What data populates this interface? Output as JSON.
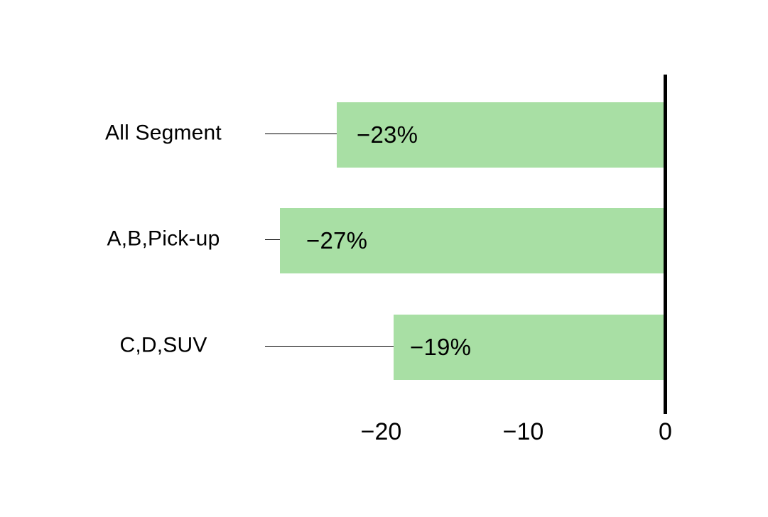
{
  "chart_data": {
    "type": "bar",
    "orientation": "horizontal",
    "categories": [
      "All Segment",
      "A,B,Pick-up",
      "C,D,SUV"
    ],
    "values": [
      -23,
      -27,
      -19
    ],
    "value_labels": [
      "−23%",
      "−27%",
      "−19%"
    ],
    "xticks": [
      -20,
      -10,
      0
    ],
    "xtick_labels": [
      "−20",
      "−10",
      "0"
    ],
    "xlim": [
      -28,
      0
    ],
    "unit": "percent",
    "bar_color": "#a8dfa4",
    "axis_color": "#000000",
    "text_color": "#000000",
    "background_color": "#ffffff",
    "grid": false,
    "legend": false
  }
}
